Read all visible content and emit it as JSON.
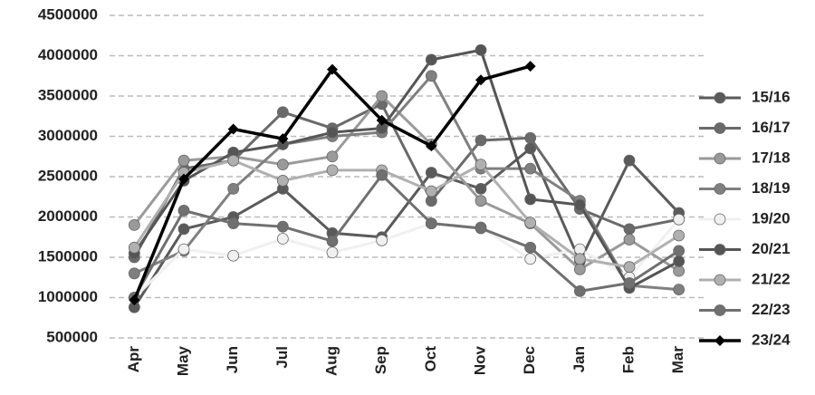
{
  "chart_data": {
    "type": "line",
    "categories": [
      "Apr",
      "May",
      "Jun",
      "Jul",
      "Aug",
      "Sep",
      "Oct",
      "Nov",
      "Dec",
      "Jan",
      "Feb",
      "Mar"
    ],
    "ylim": [
      500000,
      4500000
    ],
    "yticks": [
      500000,
      1000000,
      1500000,
      2000000,
      2500000,
      3000000,
      3500000,
      4000000,
      4500000
    ],
    "grid": true,
    "legend": "right",
    "series": [
      {
        "name": "15/16",
        "color": "#5a5a5a",
        "marker": "circle",
        "values": [
          880000,
          1850000,
          2000000,
          2350000,
          1800000,
          1750000,
          2550000,
          2350000,
          2850000,
          1450000,
          2700000,
          2050000
        ]
      },
      {
        "name": "16/17",
        "color": "#6a6a6a",
        "marker": "circle",
        "values": [
          1500000,
          2600000,
          2700000,
          3300000,
          3100000,
          3400000,
          2200000,
          2950000,
          2980000,
          2100000,
          1850000,
          1970000
        ]
      },
      {
        "name": "17/18",
        "color": "#9a9a9a",
        "marker": "circle",
        "values": [
          1900000,
          2700000,
          2750000,
          2650000,
          2750000,
          3500000,
          2900000,
          2200000,
          1920000,
          1350000,
          1720000,
          1330000
        ]
      },
      {
        "name": "18/19",
        "color": "#808080",
        "marker": "circle",
        "values": [
          1300000,
          1580000,
          2350000,
          2900000,
          3000000,
          3050000,
          3750000,
          2600000,
          2600000,
          2200000,
          1150000,
          1100000
        ]
      },
      {
        "name": "19/20",
        "color": "#f0f0f0",
        "marker": "circle",
        "values": [
          1000000,
          1600000,
          1520000,
          1730000,
          1560000,
          1710000,
          1920000,
          1870000,
          1480000,
          1600000,
          1250000,
          1970000
        ]
      },
      {
        "name": "20/21",
        "color": "#555555",
        "marker": "circle",
        "values": [
          1550000,
          2450000,
          2800000,
          2900000,
          3050000,
          3100000,
          3950000,
          4070000,
          2220000,
          2150000,
          1120000,
          1450000
        ]
      },
      {
        "name": "21/22",
        "color": "#b0b0b0",
        "marker": "circle",
        "values": [
          1620000,
          2550000,
          2700000,
          2450000,
          2580000,
          2580000,
          2320000,
          2650000,
          1930000,
          1480000,
          1380000,
          1770000
        ]
      },
      {
        "name": "22/23",
        "color": "#707070",
        "marker": "circle",
        "values": [
          1000000,
          2080000,
          1920000,
          1880000,
          1700000,
          2520000,
          1920000,
          1860000,
          1620000,
          1080000,
          1180000,
          1580000
        ]
      },
      {
        "name": "23/24",
        "color": "#000000",
        "marker": "diamond",
        "values": [
          970000,
          2470000,
          3090000,
          2970000,
          3830000,
          3200000,
          2880000,
          3700000,
          3870000,
          null,
          null,
          null
        ]
      }
    ]
  }
}
